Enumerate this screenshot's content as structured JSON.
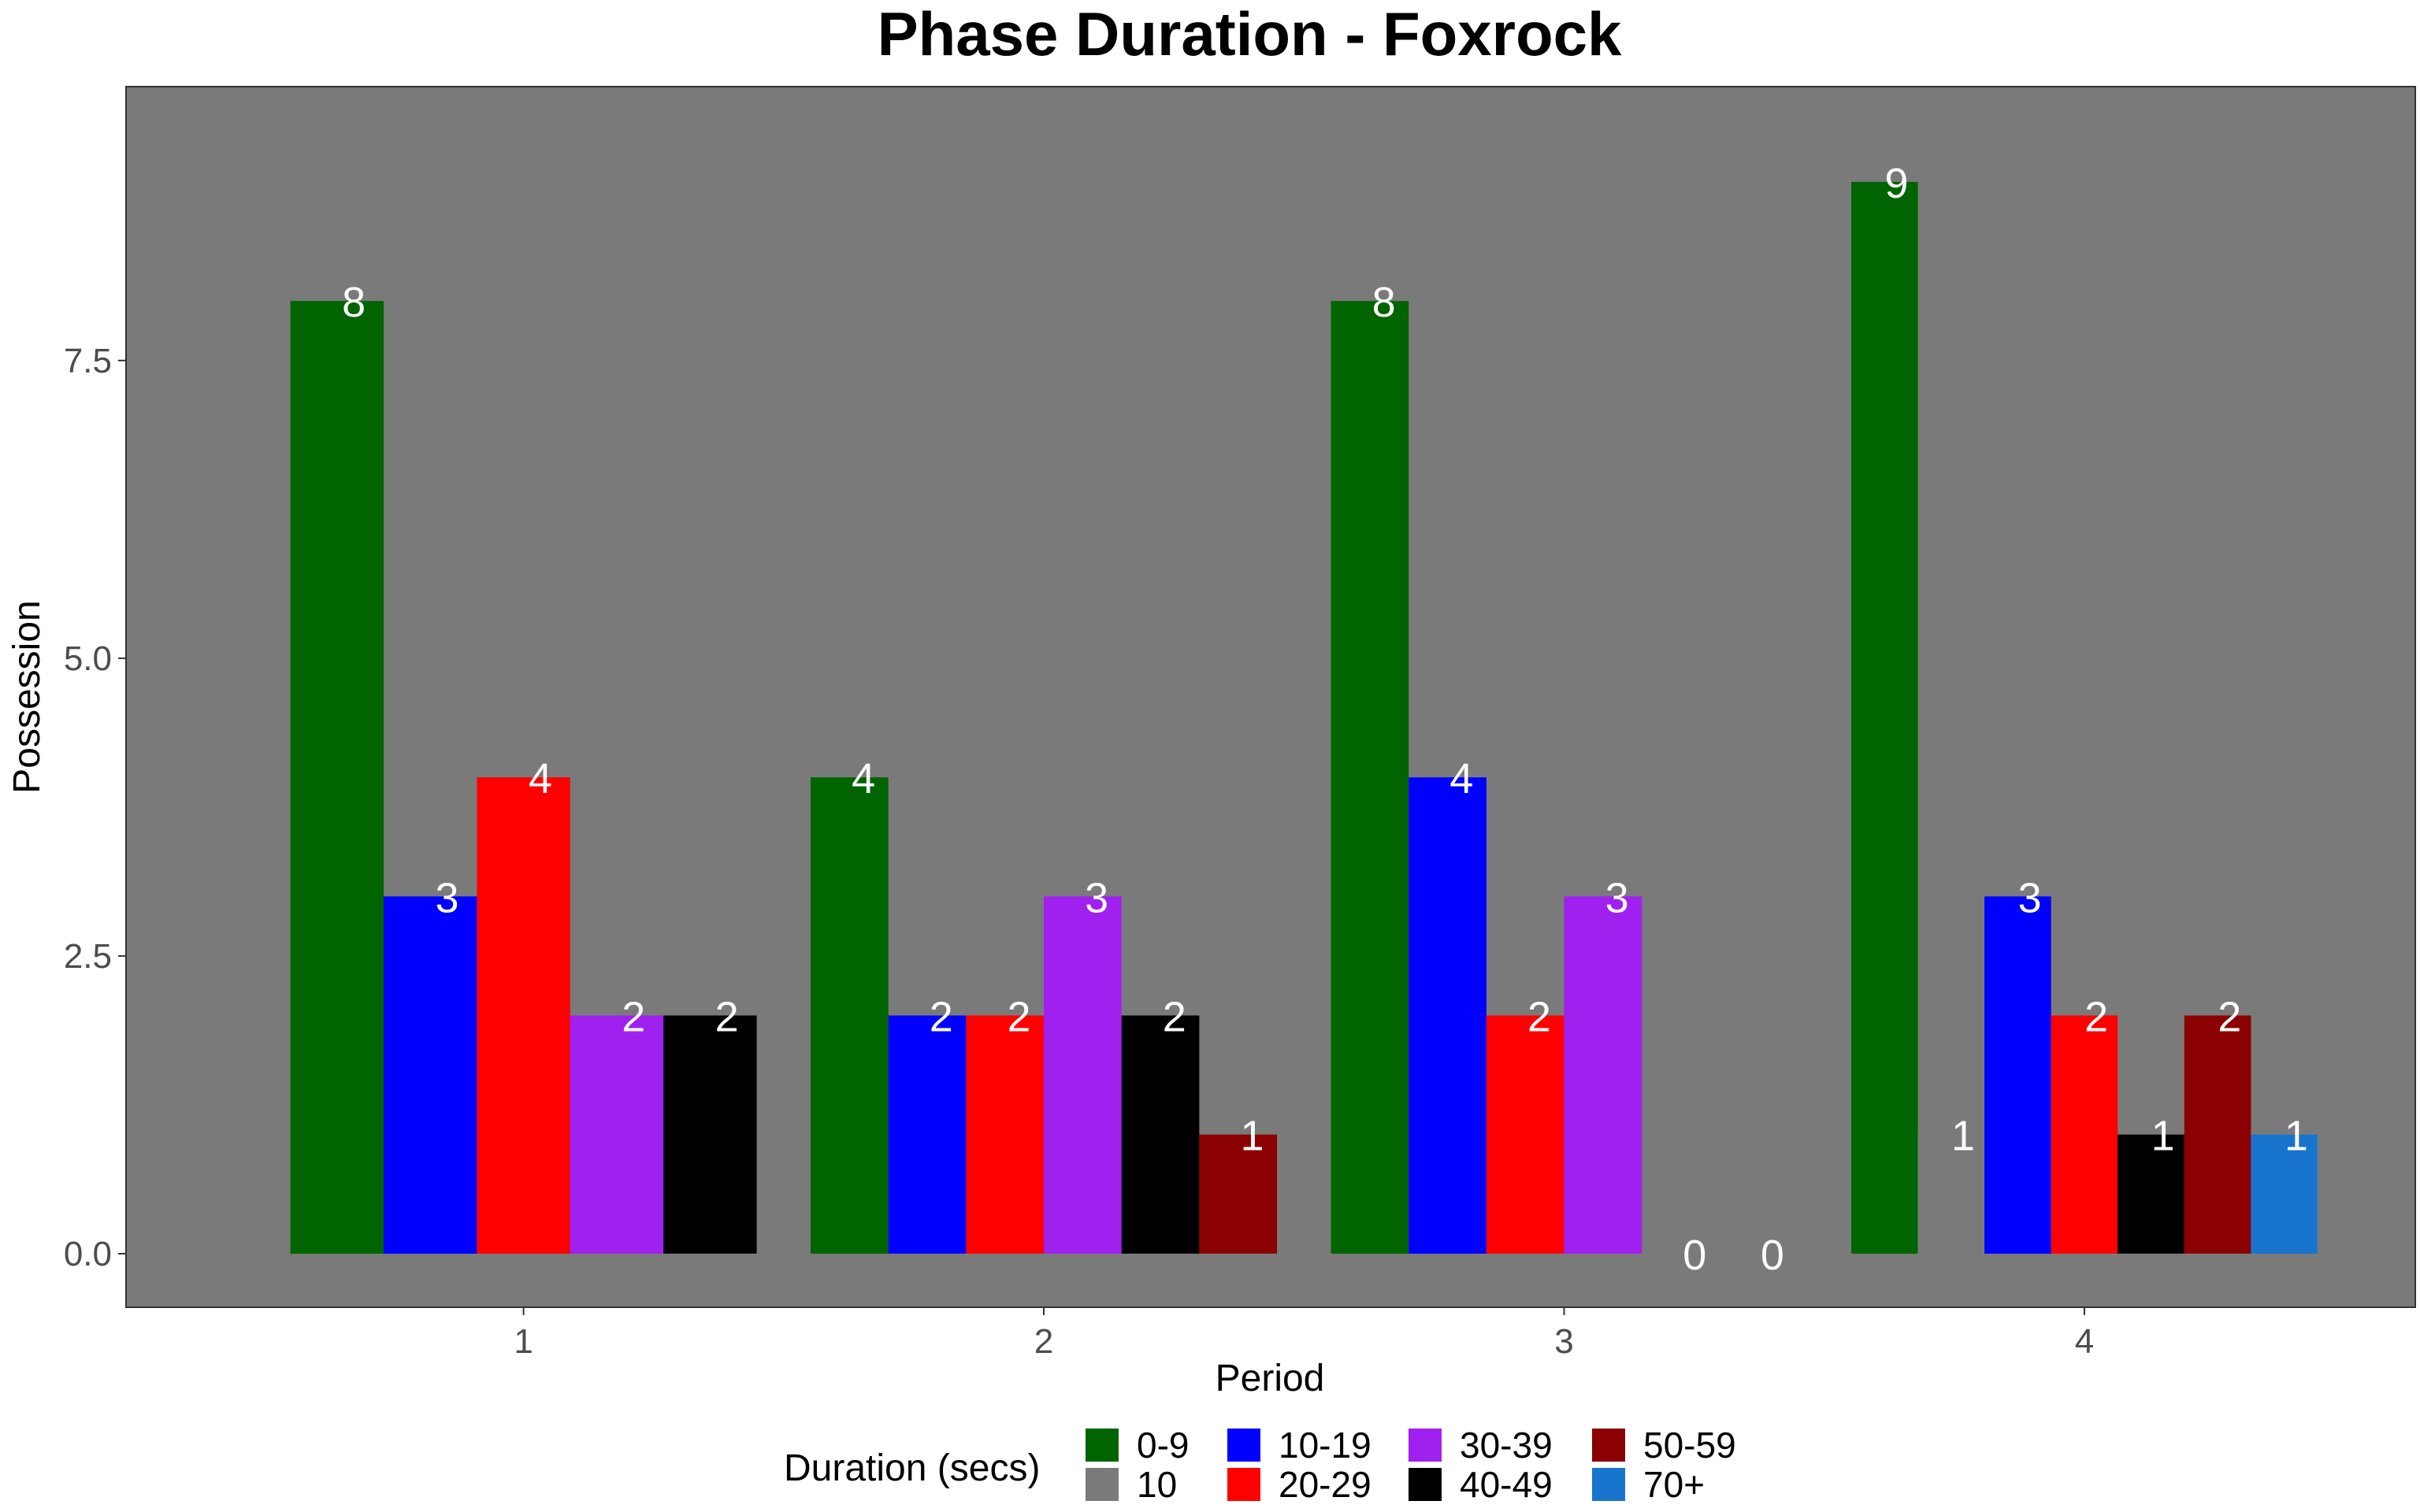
{
  "chart_data": {
    "type": "bar",
    "title": "Phase Duration - Foxrock",
    "xlabel": "Period",
    "ylabel": "Possession",
    "ylim": [
      -0.45,
      9.8
    ],
    "yticks": [
      "0.0",
      "2.5",
      "5.0",
      "7.5"
    ],
    "ytick_values": [
      0,
      2.5,
      5.0,
      7.5
    ],
    "grid": false,
    "background": "#7a7a7a",
    "legend_title": "Duration (secs)",
    "legend_position": "bottom",
    "categories": [
      "1",
      "2",
      "3",
      "4"
    ],
    "groups": [
      {
        "period": "1",
        "bars": [
          {
            "series": "0-9",
            "value": 8,
            "label": "8"
          },
          {
            "series": "10-19",
            "value": 3,
            "label": "3"
          },
          {
            "series": "20-29",
            "value": 4,
            "label": "4"
          },
          {
            "series": "30-39",
            "value": 2,
            "label": "2"
          },
          {
            "series": "40-49",
            "value": 2,
            "label": "2"
          }
        ]
      },
      {
        "period": "2",
        "bars": [
          {
            "series": "0-9",
            "value": 4,
            "label": "4"
          },
          {
            "series": "10-19",
            "value": 2,
            "label": "2"
          },
          {
            "series": "20-29",
            "value": 2,
            "label": "2"
          },
          {
            "series": "30-39",
            "value": 3,
            "label": "3"
          },
          {
            "series": "40-49",
            "value": 2,
            "label": "2"
          },
          {
            "series": "50-59",
            "value": 1,
            "label": "1"
          }
        ]
      },
      {
        "period": "3",
        "bars": [
          {
            "series": "0-9",
            "value": 8,
            "label": "8"
          },
          {
            "series": "10-19",
            "value": 4,
            "label": "4"
          },
          {
            "series": "20-29",
            "value": 2,
            "label": "2"
          },
          {
            "series": "30-39",
            "value": 3,
            "label": "3"
          },
          {
            "series": "40-49",
            "value": 0,
            "label": "0"
          },
          {
            "series": "50-59",
            "value": 0,
            "label": "0"
          }
        ]
      },
      {
        "period": "4",
        "bars": [
          {
            "series": "0-9",
            "value": 9,
            "label": "9"
          },
          {
            "series": "10",
            "value": 1,
            "label": "1"
          },
          {
            "series": "10-19",
            "value": 3,
            "label": "3"
          },
          {
            "series": "20-29",
            "value": 2,
            "label": "2"
          },
          {
            "series": "40-49",
            "value": 1,
            "label": "1"
          },
          {
            "series": "50-59",
            "value": 2,
            "label": "2"
          },
          {
            "series": "70+",
            "value": 1,
            "label": "1"
          }
        ]
      }
    ],
    "legend": [
      {
        "label": "0-9",
        "color": "#006400"
      },
      {
        "label": "10",
        "color": "#7a7a7a"
      },
      {
        "label": "10-19",
        "color": "#0000ff"
      },
      {
        "label": "20-29",
        "color": "#ff0000"
      },
      {
        "label": "30-39",
        "color": "#a020f0"
      },
      {
        "label": "40-49",
        "color": "#000000"
      },
      {
        "label": "50-59",
        "color": "#8b0000"
      },
      {
        "label": "70+",
        "color": "#1874cd"
      }
    ]
  }
}
